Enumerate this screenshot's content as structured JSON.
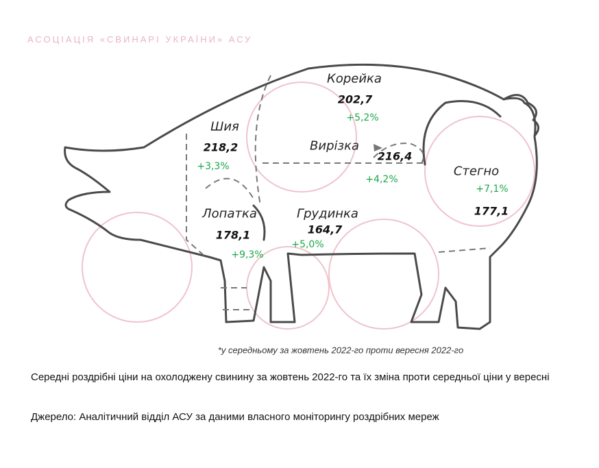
{
  "watermark": "АСОЦІАЦІЯ «СВИНАРІ УКРАЇНИ» АСУ",
  "cuts": [
    {
      "name": "Корейка",
      "price": "202,7",
      "change": "+5,2%"
    },
    {
      "name": "Шия",
      "price": "218,2",
      "change": "+3,3%"
    },
    {
      "name": "Вирізка",
      "price": "216,4",
      "change": "+4,2%"
    },
    {
      "name": "Стегно",
      "price": "177,1",
      "change": "+7,1%"
    },
    {
      "name": "Лопатка",
      "price": "178,1",
      "change": "+9,3%"
    },
    {
      "name": "Грудинка",
      "price": "164,7",
      "change": "+5,0%"
    }
  ],
  "footnote": "*у середньому за жовтень 2022-го проти вересня 2022-го",
  "caption": "Середні роздрібні ціни на охолоджену свинину за жовтень 2022-го та їх зміна проти середньої ціни у вересні",
  "source": "Джерело: Аналітичний відділ АСУ за даними власного моніторингу роздрібних мереж",
  "colors": {
    "change": "#1aa84a",
    "outline": "#444444",
    "watermark": "#e9b5c0"
  }
}
